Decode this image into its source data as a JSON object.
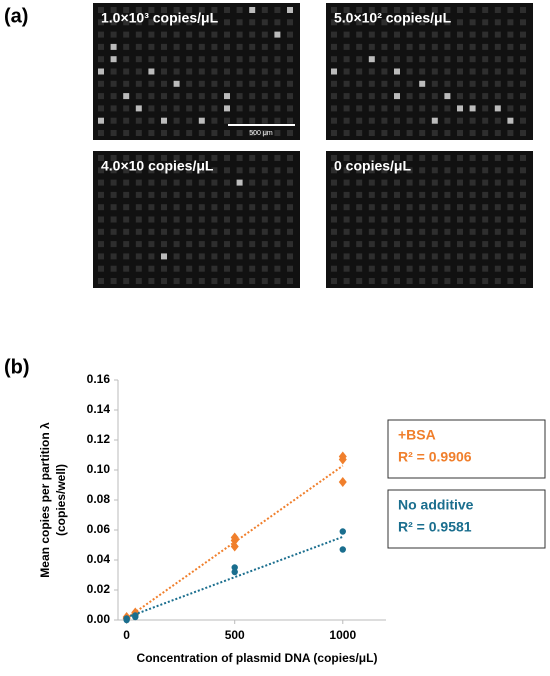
{
  "panel_a": {
    "label": "(a)",
    "images": [
      {
        "title": "1.0×10³ copies/μL",
        "scale_bar": "500 μm"
      },
      {
        "title": "5.0×10² copies/μL"
      },
      {
        "title": "4.0×10 copies/μL"
      },
      {
        "title": "0 copies/μL"
      }
    ]
  },
  "chart_data": {
    "type": "scatter",
    "panel_label": "(b)",
    "ylabel": [
      "Mean copies per partition λ",
      "(copies/well)"
    ],
    "xlabel": "Concentration of plasmid DNA  (copies/μL)",
    "xlim": [
      -40,
      1200
    ],
    "xticks": [
      0,
      500,
      1000
    ],
    "ylim": [
      0,
      0.16
    ],
    "yticks": [
      {
        "value": 0,
        "label": "0.00"
      },
      {
        "value": 0.02,
        "label": "0.02"
      },
      {
        "value": 0.04,
        "label": "0.04"
      },
      {
        "value": 0.06,
        "label": "0.06"
      },
      {
        "value": 0.08,
        "label": "0.08"
      },
      {
        "value": 0.1,
        "label": "0.10"
      },
      {
        "value": 0.12,
        "label": "0.12"
      },
      {
        "value": 0.14,
        "label": "0.14"
      },
      {
        "value": 0.16,
        "label": "0.16"
      }
    ],
    "trendline": true,
    "series": [
      {
        "name": "+BSA",
        "annotation": "R² = 0.9906",
        "color": "#f07f2c",
        "marker": "diamond",
        "x": [
          0,
          0,
          40,
          40,
          500,
          500,
          500,
          1000,
          1000,
          1000
        ],
        "values": [
          0.001,
          0.002,
          0.004,
          0.005,
          0.049,
          0.053,
          0.055,
          0.092,
          0.107,
          0.109
        ]
      },
      {
        "name": "No additive",
        "annotation": "R² = 0.9581",
        "color": "#1a6e8e",
        "marker": "circle",
        "x": [
          0,
          0,
          40,
          40,
          500,
          500,
          1000,
          1000
        ],
        "values": [
          0,
          0.001,
          0.002,
          0.003,
          0.032,
          0.035,
          0.047,
          0.059
        ]
      }
    ]
  }
}
